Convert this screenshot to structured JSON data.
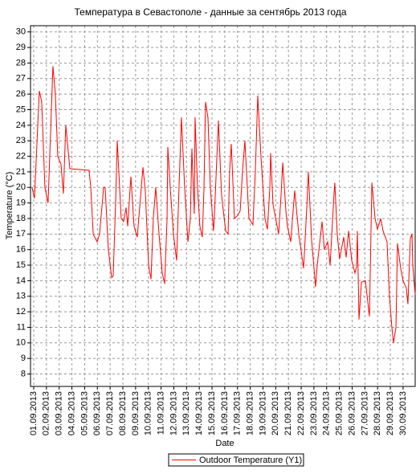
{
  "chart_data": {
    "type": "line",
    "title": "Температура в Севастополе - данные за сентябрь 2013 года",
    "x_label": "Date",
    "y_label": "Temperature (°C)",
    "xlim": [
      -0.25,
      29.95
    ],
    "ylim": [
      7.2,
      30.4
    ],
    "yticks": [
      8,
      9,
      10,
      11,
      12,
      13,
      14,
      15,
      16,
      17,
      18,
      19,
      20,
      21,
      22,
      23,
      24,
      25,
      26,
      27,
      28,
      29,
      30
    ],
    "xticks": [
      {
        "value": 0,
        "label": "01.09.2013"
      },
      {
        "value": 1,
        "label": "02.09.2013"
      },
      {
        "value": 2,
        "label": "03.09.2013"
      },
      {
        "value": 3,
        "label": "04.09.2013"
      },
      {
        "value": 4,
        "label": "05.09.2013"
      },
      {
        "value": 5,
        "label": "06.09.2013"
      },
      {
        "value": 6,
        "label": "07.09.2013"
      },
      {
        "value": 7,
        "label": "08.09.2013"
      },
      {
        "value": 8,
        "label": "09.09.2013"
      },
      {
        "value": 9,
        "label": "10.09.2013"
      },
      {
        "value": 10,
        "label": "11.09.2013"
      },
      {
        "value": 11,
        "label": "12.09.2013"
      },
      {
        "value": 12,
        "label": "13.09.2013"
      },
      {
        "value": 13,
        "label": "14.09.2013"
      },
      {
        "value": 14,
        "label": "15.09.2013"
      },
      {
        "value": 15,
        "label": "16.09.2013"
      },
      {
        "value": 16,
        "label": "17.09.2013"
      },
      {
        "value": 17,
        "label": "18.09.2013"
      },
      {
        "value": 18,
        "label": "19.09.2013"
      },
      {
        "value": 19,
        "label": "20.09.2013"
      },
      {
        "value": 20,
        "label": "21.09.2013"
      },
      {
        "value": 21,
        "label": "22.09.2013"
      },
      {
        "value": 22,
        "label": "23.09.2013"
      },
      {
        "value": 23,
        "label": "24.09.2013"
      },
      {
        "value": 24,
        "label": "25.09.2013"
      },
      {
        "value": 25,
        "label": "26.09.2013"
      },
      {
        "value": 26,
        "label": "27.09.2013"
      },
      {
        "value": 27,
        "label": "28.09.2013"
      },
      {
        "value": 28,
        "label": "29.09.2013"
      },
      {
        "value": 29,
        "label": "30.09.2013"
      }
    ],
    "grid": true,
    "legend": "bottom",
    "x": [
      -0.13,
      0.06,
      0.44,
      0.63,
      0.88,
      1.13,
      1.51,
      1.7,
      1.89,
      2.14,
      2.33,
      2.52,
      2.84,
      4.35,
      4.48,
      4.67,
      4.98,
      5.17,
      5.49,
      5.61,
      5.86,
      6.12,
      6.24,
      6.43,
      6.56,
      6.87,
      7.06,
      7.25,
      7.38,
      7.63,
      7.88,
      8.13,
      8.58,
      8.76,
      9.02,
      9.21,
      9.39,
      9.58,
      9.84,
      10.09,
      10.28,
      10.47,
      10.53,
      10.72,
      10.97,
      11.22,
      11.41,
      11.6,
      11.85,
      12.11,
      12.3,
      12.42,
      12.61,
      12.67,
      12.86,
      13.05,
      13.24,
      13.37,
      13.49,
      13.68,
      13.87,
      14.12,
      14.19,
      14.5,
      14.75,
      15.07,
      15.26,
      15.38,
      15.51,
      15.76,
      16.02,
      16.21,
      16.39,
      16.58,
      16.9,
      17.21,
      17.4,
      17.59,
      17.84,
      18.16,
      18.35,
      18.54,
      18.6,
      18.79,
      19.23,
      19.42,
      19.55,
      19.8,
      19.92,
      20.18,
      20.49,
      20.81,
      21.19,
      21.44,
      21.56,
      21.82,
      22.13,
      22.26,
      22.64,
      22.82,
      23.08,
      23.27,
      23.58,
      23.64,
      23.83,
      24.02,
      24.34,
      24.53,
      24.72,
      24.97,
      25.22,
      25.35,
      25.41,
      25.54,
      25.73,
      26.04,
      26.36,
      26.55,
      26.8,
      26.99,
      27.24,
      27.43,
      27.74,
      27.93,
      28.12,
      28.25,
      28.44,
      28.56,
      28.81,
      29.0,
      29.26,
      29.38,
      29.57,
      29.7,
      29.76,
      29.95
    ],
    "series": [
      {
        "name": "Outdoor Temperature (Y1)",
        "color": "#ff0000",
        "values": [
          20,
          19.3,
          26.2,
          25.5,
          20,
          19,
          27.8,
          26,
          22,
          21.5,
          19.6,
          24,
          21.2,
          21.1,
          20,
          17,
          16.5,
          17,
          20,
          20,
          16,
          14.2,
          14.3,
          19,
          23,
          18,
          17.8,
          18.7,
          17.5,
          20.7,
          17.5,
          16.8,
          21.3,
          19.8,
          15,
          14.1,
          18,
          20,
          17,
          14.5,
          13.8,
          18,
          22.6,
          20,
          17,
          15.3,
          20,
          24.5,
          20,
          16.5,
          18,
          22.5,
          18.3,
          24.5,
          20,
          17.5,
          16.8,
          20,
          25.5,
          24.5,
          20,
          17.2,
          18.2,
          24.3,
          19.5,
          17.2,
          17,
          21,
          22.8,
          18,
          18.2,
          18.5,
          21,
          23,
          18,
          17.6,
          21,
          25.9,
          22,
          18,
          17.3,
          20,
          22.2,
          18.9,
          17,
          19.5,
          21.6,
          18.5,
          17.5,
          16.5,
          19.8,
          17,
          14.8,
          18.7,
          21,
          16.6,
          13.6,
          15,
          17.8,
          16,
          16.5,
          15,
          19.6,
          20.3,
          17,
          15.4,
          16.8,
          15.5,
          17.2,
          15.3,
          14.5,
          14.9,
          17.2,
          11.5,
          13.9,
          14,
          11.7,
          20.3,
          18,
          17.3,
          18,
          17.2,
          16.5,
          13,
          11,
          10,
          11,
          16.4,
          14.8,
          14,
          13.5,
          12.5,
          16.7,
          17,
          15,
          13.1
        ]
      }
    ]
  }
}
